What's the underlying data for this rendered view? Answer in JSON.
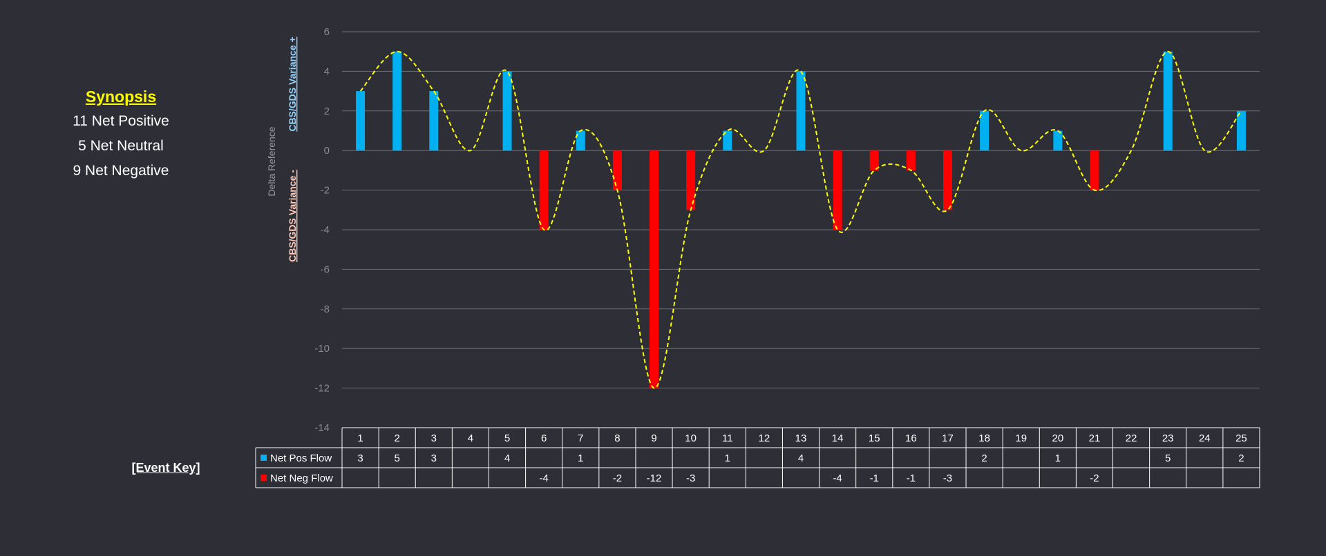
{
  "synopsis": {
    "title": "Synopsis",
    "lines": [
      "11 Net Positive",
      "5 Net Neutral",
      "9 Net Negative"
    ]
  },
  "event_key": "[Event Key]",
  "colors": {
    "background": "#2d2e36",
    "positive": "#00b0f0",
    "negative": "#ff0000",
    "trend": "#ffff00",
    "grid": "#6e6f76"
  },
  "chart_data": {
    "type": "bar",
    "categories": [
      "1",
      "2",
      "3",
      "4",
      "5",
      "6",
      "7",
      "8",
      "9",
      "10",
      "11",
      "12",
      "13",
      "14",
      "15",
      "16",
      "17",
      "18",
      "19",
      "20",
      "21",
      "22",
      "23",
      "24",
      "25"
    ],
    "series": [
      {
        "name": "Net Pos Flow",
        "values": [
          3,
          5,
          3,
          null,
          4,
          null,
          1,
          null,
          null,
          null,
          1,
          null,
          4,
          null,
          null,
          null,
          null,
          2,
          null,
          1,
          null,
          null,
          5,
          null,
          2
        ]
      },
      {
        "name": "Net Neg Flow",
        "values": [
          null,
          null,
          null,
          null,
          null,
          -4,
          null,
          -2,
          -12,
          -3,
          null,
          null,
          null,
          -4,
          -1,
          -1,
          -3,
          null,
          null,
          null,
          -2,
          null,
          null,
          null,
          null
        ]
      }
    ],
    "trend_line": {
      "style": "dashed smooth",
      "values": [
        3,
        5,
        3,
        0,
        4,
        -4,
        1,
        -2,
        -12,
        -3,
        1,
        0,
        4,
        -4,
        -1,
        -1,
        -3,
        2,
        0,
        1,
        -2,
        0,
        5,
        0,
        2
      ]
    },
    "ylim": [
      -14,
      6
    ],
    "yticks": [
      6,
      4,
      2,
      0,
      -2,
      -4,
      -6,
      -8,
      -10,
      -12,
      -14
    ],
    "ylabel_reference": "Delta Reference",
    "ylabel_positive": "CBS/GDS Variance +",
    "ylabel_negative": "CBS/GDS Variance -",
    "grid": true,
    "data_table": true
  }
}
